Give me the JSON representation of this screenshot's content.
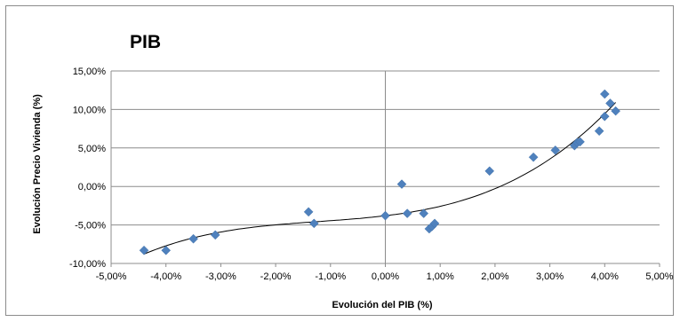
{
  "chart_data": {
    "type": "scatter",
    "title": "PIB",
    "xlabel": "Evolución del PIB (%)",
    "ylabel": "Evolución  Precio Vivienda (%)",
    "xlim": [
      -5.0,
      5.0
    ],
    "ylim": [
      -10.0,
      15.0
    ],
    "x_ticks": [
      "-5,00%",
      "-4,00%",
      "-3,00%",
      "-2,00%",
      "-1,00%",
      "0,00%",
      "1,00%",
      "2,00%",
      "3,00%",
      "4,00%",
      "5,00%"
    ],
    "y_ticks": [
      "-10,00%",
      "-5,00%",
      "0,00%",
      "5,00%",
      "10,00%",
      "15,00%"
    ],
    "grid": "horizontal major gridlines",
    "marker_color": "#4f81bd",
    "trendline_color": "#000000",
    "trendline_type": "polynomial",
    "series": [
      {
        "points": [
          {
            "x": -4.4,
            "y": -8.3
          },
          {
            "x": -4.0,
            "y": -8.3
          },
          {
            "x": -3.5,
            "y": -6.8
          },
          {
            "x": -3.1,
            "y": -6.3
          },
          {
            "x": -1.4,
            "y": -3.3
          },
          {
            "x": -1.3,
            "y": -4.8
          },
          {
            "x": 0.0,
            "y": -3.8
          },
          {
            "x": 0.3,
            "y": 0.3
          },
          {
            "x": 0.4,
            "y": -3.5
          },
          {
            "x": 0.7,
            "y": -3.5
          },
          {
            "x": 0.8,
            "y": -5.5
          },
          {
            "x": 0.85,
            "y": -5.2
          },
          {
            "x": 0.9,
            "y": -4.8
          },
          {
            "x": 1.9,
            "y": 2.0
          },
          {
            "x": 2.7,
            "y": 3.8
          },
          {
            "x": 3.1,
            "y": 4.7
          },
          {
            "x": 3.45,
            "y": 5.3
          },
          {
            "x": 3.5,
            "y": 5.7
          },
          {
            "x": 3.55,
            "y": 5.8
          },
          {
            "x": 3.9,
            "y": 7.2
          },
          {
            "x": 4.0,
            "y": 9.1
          },
          {
            "x": 4.0,
            "y": 12.0
          },
          {
            "x": 4.1,
            "y": 10.8
          },
          {
            "x": 4.2,
            "y": 9.8
          }
        ]
      }
    ]
  }
}
